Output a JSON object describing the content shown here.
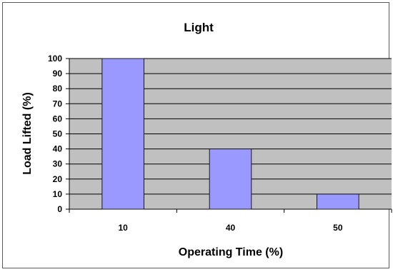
{
  "chart_data": {
    "type": "bar",
    "title": "Light",
    "xlabel": "Operating Time (%)",
    "ylabel": "Load Lifted (%)",
    "categories": [
      "10",
      "40",
      "50"
    ],
    "values": [
      100,
      40,
      10
    ],
    "ylim": [
      0,
      100
    ],
    "yticks": [
      0,
      10,
      20,
      30,
      40,
      50,
      60,
      70,
      80,
      90,
      100
    ],
    "grid": true,
    "legend": "none",
    "colors": {
      "bar_fill": "#9999ff",
      "bar_stroke": "#1a1a1a",
      "plot_background": "#c0c0c0",
      "grid": "#000000"
    }
  }
}
